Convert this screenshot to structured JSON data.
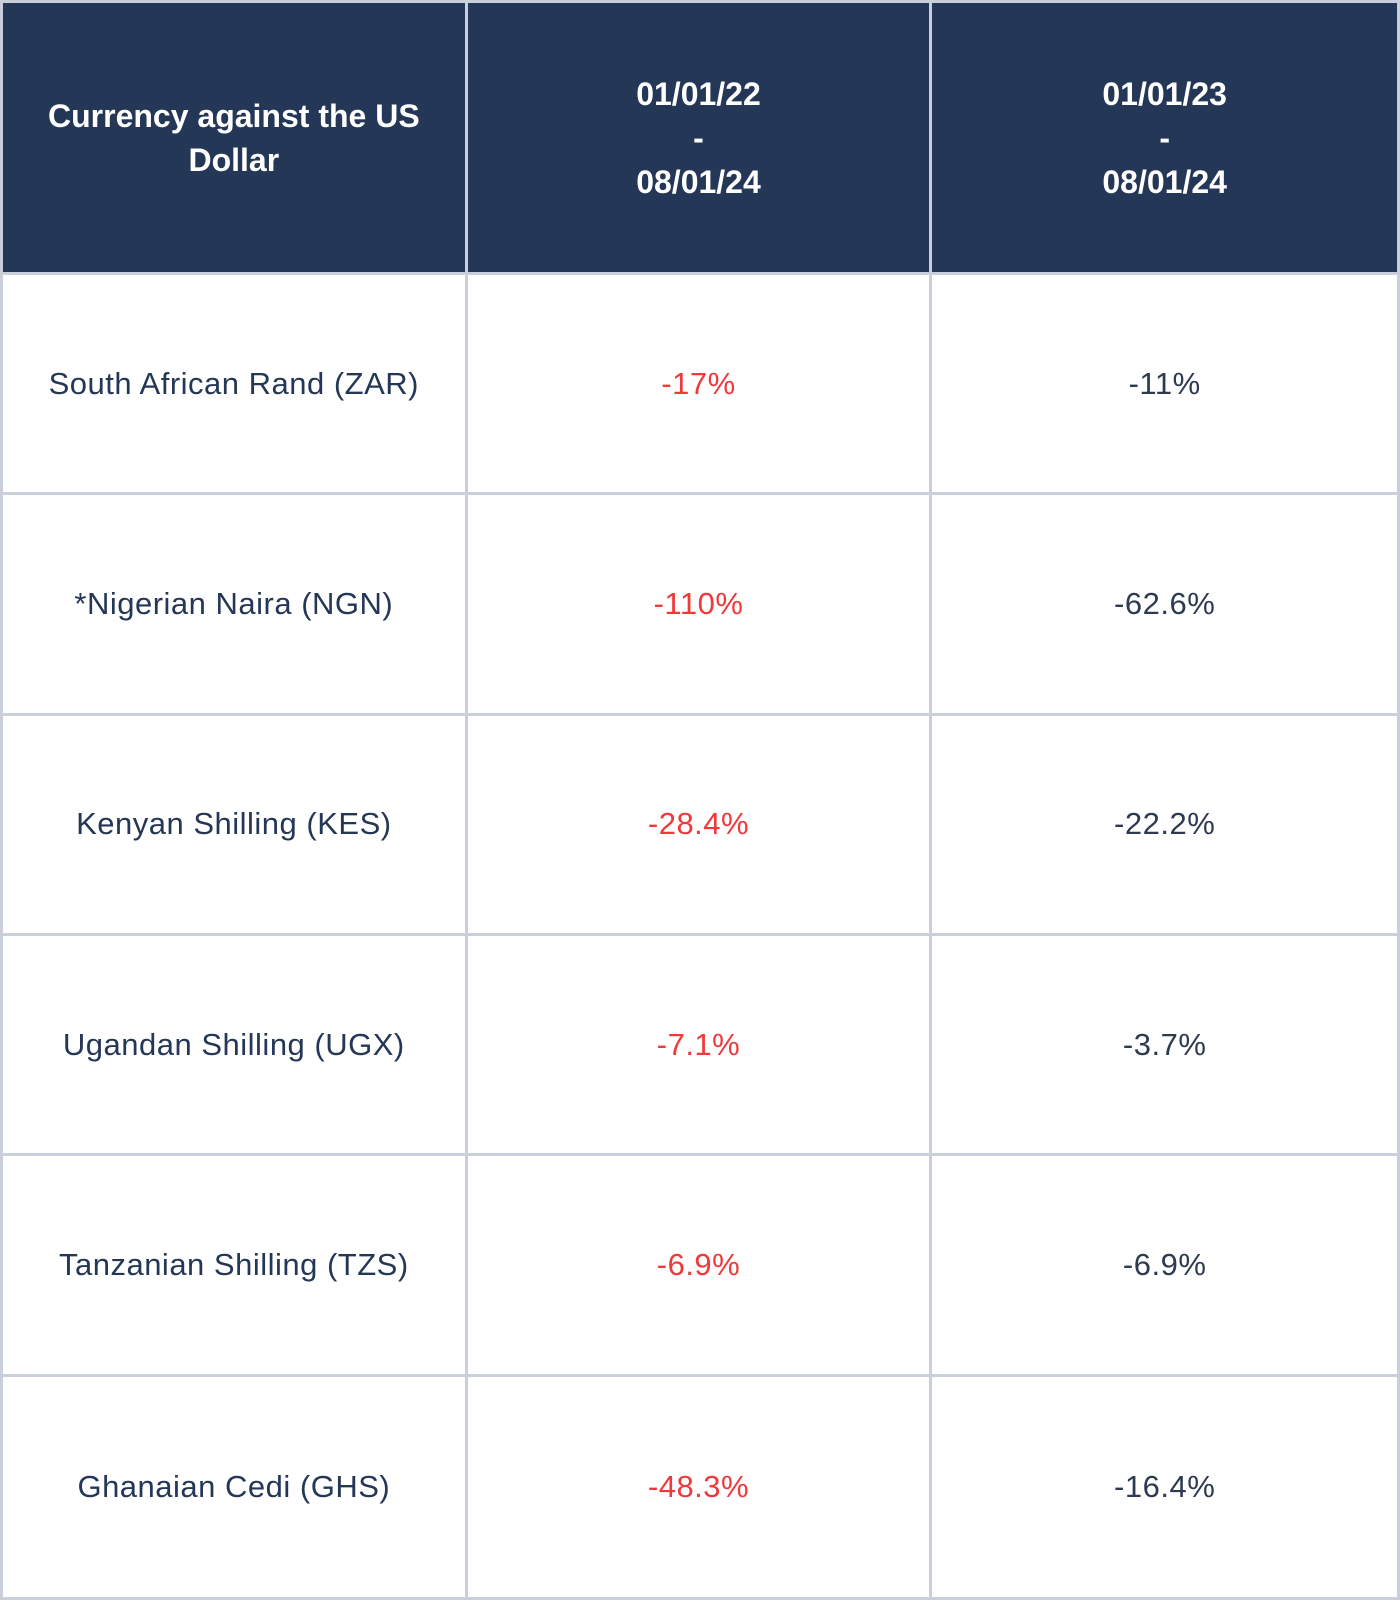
{
  "table": {
    "header": {
      "col0": "Currency against the US Dollar",
      "col1": {
        "start": "01/01/22",
        "sep": "-",
        "end": "08/01/24"
      },
      "col2": {
        "start": "01/01/23",
        "sep": "-",
        "end": "08/01/24"
      }
    },
    "rows": [
      {
        "currency": "South African Rand (ZAR)",
        "period1": "-17%",
        "period2": "-11%"
      },
      {
        "currency": "*Nigerian Naira (NGN)",
        "period1": "-110%",
        "period2": "-62.6%"
      },
      {
        "currency": "Kenyan Shilling (KES)",
        "period1": "-28.4%",
        "period2": "-22.2%"
      },
      {
        "currency": "Ugandan Shilling (UGX)",
        "period1": "-7.1%",
        "period2": "-3.7%"
      },
      {
        "currency": "Tanzanian Shilling (TZS)",
        "period1": "-6.9%",
        "period2": "-6.9%"
      },
      {
        "currency": "Ghanaian Cedi (GHS)",
        "period1": "-48.3%",
        "period2": "-16.4%"
      }
    ]
  },
  "colors": {
    "header_bg": "#253756",
    "header_text": "#ffffff",
    "border": "#c9d0dc",
    "period1_text": "#f0393b",
    "period2_text": "#2e3a52",
    "currency_text": "#253756"
  }
}
